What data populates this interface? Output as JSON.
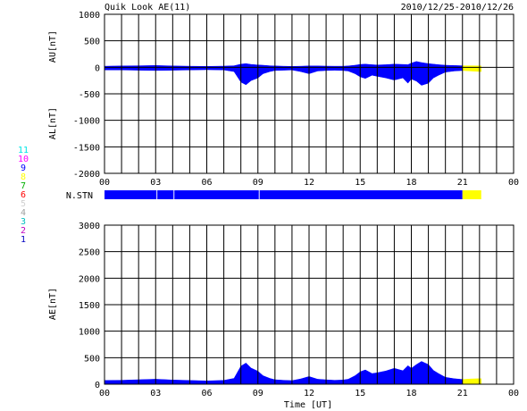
{
  "header": {
    "title": "Quik Look AE(11)",
    "date_range": "2010/12/25-2010/12/26"
  },
  "x_axis": {
    "label": "Time [UT]",
    "ticks": [
      "00",
      "03",
      "06",
      "09",
      "12",
      "15",
      "18",
      "21",
      "00"
    ]
  },
  "colors": {
    "final": "#0000ff",
    "realtime": "#ffff00",
    "grid": "#000000"
  },
  "station_legend": [
    {
      "label": "11",
      "color": "#00e5e5"
    },
    {
      "label": "10",
      "color": "#ff00ff"
    },
    {
      "label": "9",
      "color": "#0000ff"
    },
    {
      "label": "8",
      "color": "#ffff00"
    },
    {
      "label": "7",
      "color": "#00b000"
    },
    {
      "label": "6",
      "color": "#ff0000"
    },
    {
      "label": "5",
      "color": "#d0d0d0"
    },
    {
      "label": "4",
      "color": "#a0a0a0"
    },
    {
      "label": "3",
      "color": "#00c0c0"
    },
    {
      "label": "2",
      "color": "#c000c0"
    },
    {
      "label": "1",
      "color": "#0000c0"
    }
  ],
  "chart_data": [
    {
      "type": "area",
      "panel": "AU/AL",
      "ylabel_top": "AU[nT]",
      "ylabel_bottom": "AL[nT]",
      "ylim": [
        -2000,
        1000
      ],
      "yticks": [
        1000,
        500,
        0,
        -500,
        -1000,
        -1500,
        -2000
      ],
      "xlim": [
        0,
        24
      ],
      "grid": true,
      "au": {
        "x": [
          0,
          1,
          2,
          3,
          4,
          5,
          6,
          7,
          7.6,
          8,
          8.3,
          8.6,
          9,
          9.3,
          9.7,
          10,
          10.5,
          11,
          11.5,
          12,
          12.5,
          13,
          13.5,
          14,
          14.3,
          14.7,
          15,
          15.3,
          15.7,
          16,
          16.5,
          17,
          17.5,
          17.8,
          18,
          18.3,
          18.6,
          19,
          19.3,
          19.6,
          20,
          20.5,
          21
        ],
        "y": [
          20,
          25,
          30,
          35,
          25,
          20,
          18,
          22,
          30,
          60,
          70,
          55,
          45,
          40,
          30,
          25,
          20,
          18,
          20,
          25,
          25,
          22,
          20,
          20,
          25,
          40,
          55,
          60,
          50,
          45,
          50,
          60,
          55,
          50,
          80,
          110,
          90,
          70,
          60,
          50,
          40,
          35,
          30
        ]
      },
      "al": {
        "x": [
          0,
          1,
          2,
          3,
          4,
          5,
          6,
          7,
          7.6,
          8,
          8.3,
          8.6,
          9,
          9.3,
          9.7,
          10,
          10.5,
          11,
          11.5,
          12,
          12.5,
          13,
          13.5,
          14,
          14.3,
          14.7,
          15,
          15.3,
          15.7,
          16,
          16.5,
          17,
          17.5,
          17.8,
          18,
          18.3,
          18.6,
          19,
          19.3,
          19.6,
          20,
          20.5,
          21
        ],
        "y": [
          -50,
          -50,
          -55,
          -60,
          -55,
          -50,
          -45,
          -50,
          -80,
          -280,
          -330,
          -250,
          -200,
          -120,
          -80,
          -60,
          -55,
          -50,
          -80,
          -120,
          -70,
          -60,
          -55,
          -60,
          -70,
          -120,
          -180,
          -210,
          -150,
          -170,
          -200,
          -240,
          -200,
          -300,
          -220,
          -260,
          -340,
          -300,
          -200,
          -150,
          -90,
          -70,
          -60
        ]
      },
      "realtime_au": {
        "x": [
          21,
          21.5,
          22.1
        ],
        "y": [
          30,
          30,
          25
        ]
      },
      "realtime_al": {
        "x": [
          21,
          21.5,
          22.1
        ],
        "y": [
          -60,
          -70,
          -80
        ]
      }
    },
    {
      "type": "bar",
      "panel": "N.STN",
      "label": "N.STN",
      "segments": [
        {
          "start": 0,
          "end": 3.05,
          "color": "#0000ff"
        },
        {
          "start": 3.1,
          "end": 4.05,
          "color": "#0000ff"
        },
        {
          "start": 4.1,
          "end": 9.05,
          "color": "#0000ff"
        },
        {
          "start": 9.1,
          "end": 21.0,
          "color": "#0000ff"
        },
        {
          "start": 21.0,
          "end": 22.1,
          "color": "#ffff00"
        }
      ]
    },
    {
      "type": "area",
      "panel": "AE",
      "ylabel": "AE[nT]",
      "ylim": [
        0,
        3000
      ],
      "yticks": [
        3000,
        2500,
        2000,
        1500,
        1000,
        500,
        0
      ],
      "xlim": [
        0,
        24
      ],
      "grid": true,
      "series": [
        {
          "name": "AE",
          "x": [
            0,
            1,
            2,
            3,
            4,
            5,
            6,
            7,
            7.6,
            8,
            8.3,
            8.6,
            9,
            9.3,
            9.7,
            10,
            10.5,
            11,
            11.5,
            12,
            12.5,
            13,
            13.5,
            14,
            14.3,
            14.7,
            15,
            15.3,
            15.7,
            16,
            16.5,
            17,
            17.5,
            17.8,
            18,
            18.3,
            18.6,
            19,
            19.3,
            19.6,
            20,
            20.5,
            21
          ],
          "y": [
            70,
            75,
            85,
            95,
            80,
            70,
            63,
            72,
            110,
            340,
            400,
            305,
            245,
            160,
            110,
            85,
            75,
            68,
            100,
            145,
            95,
            82,
            75,
            80,
            95,
            160,
            235,
            270,
            200,
            215,
            250,
            300,
            255,
            350,
            300,
            370,
            430,
            370,
            260,
            200,
            130,
            105,
            90
          ]
        }
      ],
      "realtime": {
        "x": [
          21,
          21.5,
          22.1
        ],
        "y": [
          90,
          100,
          105
        ]
      }
    }
  ]
}
